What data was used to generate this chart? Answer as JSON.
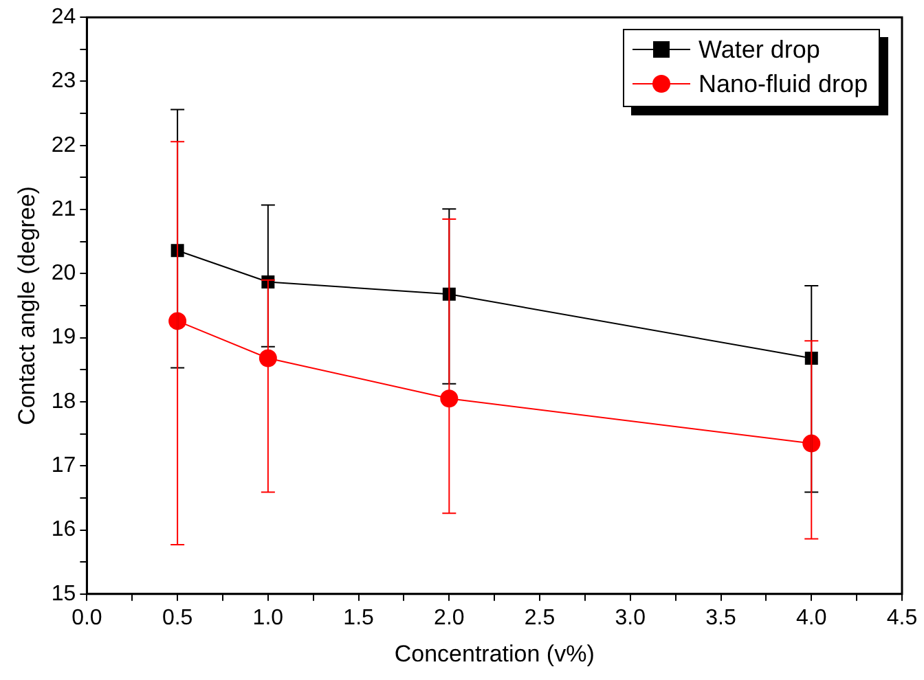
{
  "chart_data": {
    "type": "line",
    "xlabel": "Concentration (v%)",
    "ylabel": "Contact angle (degree)",
    "x": [
      0.5,
      1.0,
      2.0,
      4.0
    ],
    "series": [
      {
        "name": "Water drop",
        "color": "#000000",
        "marker": "square",
        "values": [
          20.36,
          19.87,
          19.68,
          18.68
        ],
        "errors": [
          [
            18.53,
            22.56
          ],
          [
            18.86,
            21.07
          ],
          [
            18.28,
            21.01
          ],
          [
            16.59,
            19.81
          ]
        ]
      },
      {
        "name": "Nano-fluid drop",
        "color": "#ff0000",
        "marker": "circle",
        "values": [
          19.26,
          18.68,
          18.05,
          17.35
        ],
        "errors": [
          [
            15.77,
            22.06
          ],
          [
            16.59,
            19.9
          ],
          [
            16.26,
            20.85
          ],
          [
            15.86,
            18.95
          ]
        ]
      }
    ],
    "xlim": [
      0,
      4.5
    ],
    "xticks": [
      {
        "value": 0,
        "label": "0.0"
      },
      {
        "value": 0.25,
        "label": null
      },
      {
        "value": 0.5,
        "label": "0.5"
      },
      {
        "value": 0.75,
        "label": null
      },
      {
        "value": 1,
        "label": "1.0"
      },
      {
        "value": 1.25,
        "label": null
      },
      {
        "value": 1.5,
        "label": "1.5"
      },
      {
        "value": 1.75,
        "label": null
      },
      {
        "value": 2,
        "label": "2.0"
      },
      {
        "value": 2.25,
        "label": null
      },
      {
        "value": 2.5,
        "label": "2.5"
      },
      {
        "value": 2.75,
        "label": null
      },
      {
        "value": 3,
        "label": "3.0"
      },
      {
        "value": 3.25,
        "label": null
      },
      {
        "value": 3.5,
        "label": "3.5"
      },
      {
        "value": 3.75,
        "label": null
      },
      {
        "value": 4,
        "label": "4.0"
      },
      {
        "value": 4.25,
        "label": null
      },
      {
        "value": 4.5,
        "label": "4.5"
      }
    ],
    "ylim": [
      15,
      24
    ],
    "yticks": [
      15,
      {
        "value": 15.5,
        "label": null
      },
      16,
      {
        "value": 16.5,
        "label": null
      },
      17,
      {
        "value": 17.5,
        "label": null
      },
      18,
      {
        "value": 18.5,
        "label": null
      },
      19,
      {
        "value": 19.5,
        "label": null
      },
      20,
      {
        "value": 20.5,
        "label": null
      },
      21,
      {
        "value": 21.5,
        "label": null
      },
      22,
      {
        "value": 22.5,
        "label": null
      },
      23,
      {
        "value": 23.5,
        "label": null
      },
      24
    ],
    "grid": false,
    "legend": "top right",
    "line_style": "solid"
  }
}
